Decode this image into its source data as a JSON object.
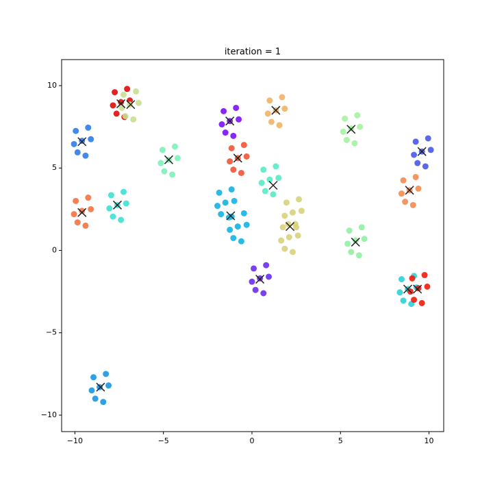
{
  "chart_data": {
    "type": "scatter",
    "title": "iteration = 1",
    "xlim": [
      -10.75,
      10.83
    ],
    "ylim": [
      -11.0,
      11.58
    ],
    "xticks": [
      {
        "value": -10,
        "label": "−10"
      },
      {
        "value": -5,
        "label": "−5"
      },
      0,
      5,
      10
    ],
    "yticks": [
      {
        "value": -10,
        "label": "−10"
      },
      {
        "value": -5,
        "label": "−5"
      },
      0,
      5,
      10
    ],
    "series": [
      {
        "color": "#e00a0a",
        "x": [
          -7.4,
          -7.05,
          -7.75,
          -7.2,
          -7.65,
          -6.9,
          -7.85
        ],
        "values": [
          9.0,
          9.8,
          9.6,
          8.1,
          8.3,
          9.1,
          8.8
        ]
      },
      {
        "color": "#c8e090",
        "x": [
          -6.9,
          -6.55,
          -7.25,
          -6.7,
          -7.15,
          -6.4,
          -7.35
        ],
        "values": [
          8.85,
          9.65,
          9.45,
          7.95,
          8.15,
          8.95,
          8.65
        ]
      },
      {
        "color": "#2f7ce8",
        "x": [
          -9.6,
          -9.25,
          -9.95,
          -9.4,
          -9.85,
          -9.1,
          -10.05
        ],
        "values": [
          6.65,
          7.45,
          7.25,
          5.75,
          5.95,
          6.75,
          6.45
        ]
      },
      {
        "color": "#7cf2b8",
        "x": [
          -4.7,
          -4.35,
          -5.05,
          -4.5,
          -4.95,
          -4.2,
          -5.15
        ],
        "values": [
          5.5,
          6.3,
          6.1,
          4.6,
          4.8,
          5.6,
          5.3
        ]
      },
      {
        "color": "#7a10f8",
        "x": [
          -1.25,
          -0.9,
          -1.6,
          -1.05,
          -1.5,
          -0.75,
          -1.7
        ],
        "values": [
          7.85,
          8.65,
          8.45,
          6.95,
          7.15,
          7.95,
          7.65
        ]
      },
      {
        "color": "#f0b468",
        "x": [
          1.35,
          1.7,
          1.0,
          1.55,
          1.1,
          1.85,
          0.9
        ],
        "values": [
          8.5,
          9.3,
          9.1,
          7.6,
          7.8,
          8.6,
          8.3
        ]
      },
      {
        "color": "#a4f2a0",
        "x": [
          5.6,
          5.95,
          5.25,
          5.8,
          5.35,
          6.1,
          5.15
        ],
        "values": [
          7.4,
          8.2,
          8.0,
          6.5,
          6.7,
          7.5,
          7.2
        ]
      },
      {
        "color": "#4a58e8",
        "x": [
          9.6,
          9.95,
          9.25,
          9.8,
          9.35,
          10.1,
          9.15
        ],
        "values": [
          6.0,
          6.8,
          6.6,
          5.1,
          5.3,
          6.1,
          5.8
        ]
      },
      {
        "color": "#f05434",
        "x": [
          -0.8,
          -0.45,
          -1.15,
          -0.6,
          -1.05,
          -0.3,
          -1.25
        ],
        "values": [
          5.6,
          6.4,
          6.2,
          4.7,
          4.9,
          5.7,
          5.4
        ]
      },
      {
        "color": "#58eac4",
        "x": [
          1.0,
          1.35,
          0.65,
          1.2,
          0.75,
          1.5,
          0.55
        ],
        "values": [
          4.3,
          5.1,
          4.9,
          3.4,
          3.6,
          4.4,
          4.1
        ]
      },
      {
        "color": "#f48a50",
        "x": [
          8.9,
          9.25,
          8.55,
          9.1,
          8.65,
          9.4,
          8.45
        ],
        "values": [
          3.65,
          4.45,
          4.25,
          2.75,
          2.95,
          3.75,
          3.45
        ]
      },
      {
        "color": "#f47244",
        "x": [
          -9.6,
          -9.25,
          -9.95,
          -9.4,
          -9.85,
          -9.1,
          -10.05
        ],
        "values": [
          2.4,
          3.2,
          3.0,
          1.5,
          1.7,
          2.5,
          2.2
        ]
      },
      {
        "color": "#3ee0d2",
        "x": [
          -7.6,
          -7.25,
          -7.95,
          -7.4,
          -7.85,
          -7.1,
          -8.05
        ],
        "values": [
          2.75,
          3.55,
          3.35,
          1.85,
          2.05,
          2.85,
          2.55
        ]
      },
      {
        "color": "#14b2e2",
        "x": [
          -1.5,
          -1.15,
          -1.85,
          -1.3,
          -1.75,
          -1.0,
          -1.95,
          -0.8,
          -0.45,
          -1.15,
          -0.6,
          -1.05,
          -0.3,
          -1.25
        ],
        "values": [
          2.9,
          3.7,
          3.5,
          2.0,
          2.2,
          3.0,
          2.7,
          1.45,
          2.25,
          2.05,
          0.55,
          0.75,
          1.55,
          1.25
        ]
      },
      {
        "color": "#d8d27a",
        "x": [
          2.3,
          2.65,
          1.95,
          2.5,
          2.05,
          2.8,
          1.85,
          2.1,
          2.45,
          1.75,
          2.3,
          1.85,
          2.6,
          1.65
        ],
        "values": [
          2.3,
          3.1,
          2.9,
          1.4,
          1.6,
          2.4,
          2.1,
          0.8,
          1.6,
          1.4,
          -0.1,
          0.1,
          0.9,
          0.6
        ]
      },
      {
        "color": "#94f0a4",
        "x": [
          5.85,
          6.2,
          5.5,
          6.05,
          5.6,
          6.35,
          5.4
        ],
        "values": [
          0.6,
          1.4,
          1.2,
          -0.3,
          -0.1,
          0.7,
          0.4
        ]
      },
      {
        "color": "#6a2ef0",
        "x": [
          0.45,
          0.8,
          0.1,
          0.65,
          0.2,
          0.95,
          0.0
        ],
        "values": [
          -1.7,
          -0.9,
          -1.1,
          -2.6,
          -2.4,
          -1.6,
          -1.9
        ]
      },
      {
        "color": "#2ed2d8",
        "x": [
          8.8,
          9.15,
          8.45,
          9.0,
          8.55,
          9.3,
          8.35
        ],
        "values": [
          -2.35,
          -1.55,
          -1.75,
          -3.25,
          -3.05,
          -2.25,
          -2.55
        ]
      },
      {
        "color": "#f01c0c",
        "x": [
          9.4,
          9.75,
          9.05,
          9.6,
          9.15,
          9.9,
          8.95
        ],
        "values": [
          -2.3,
          -1.5,
          -1.7,
          -3.2,
          -3.0,
          -2.2,
          -2.5
        ]
      },
      {
        "color": "#1a96e2",
        "x": [
          -8.6,
          -8.25,
          -8.95,
          -8.4,
          -8.85,
          -8.1,
          -9.05
        ],
        "values": [
          -8.3,
          -7.5,
          -7.7,
          -9.2,
          -9.0,
          -8.2,
          -8.5
        ]
      }
    ],
    "centroids": {
      "color": "#222222",
      "x": [
        -7.4,
        -6.85,
        -9.6,
        -4.7,
        -1.25,
        1.35,
        5.6,
        9.6,
        -0.8,
        1.2,
        8.9,
        -9.6,
        -7.6,
        -1.2,
        2.15,
        5.85,
        0.45,
        8.8,
        9.35,
        -8.55
      ],
      "values": [
        8.9,
        8.85,
        6.6,
        5.5,
        7.85,
        8.5,
        7.35,
        6.0,
        5.6,
        3.95,
        3.65,
        2.3,
        2.75,
        2.1,
        1.45,
        0.5,
        -1.75,
        -2.35,
        -2.35,
        -8.3
      ]
    }
  }
}
